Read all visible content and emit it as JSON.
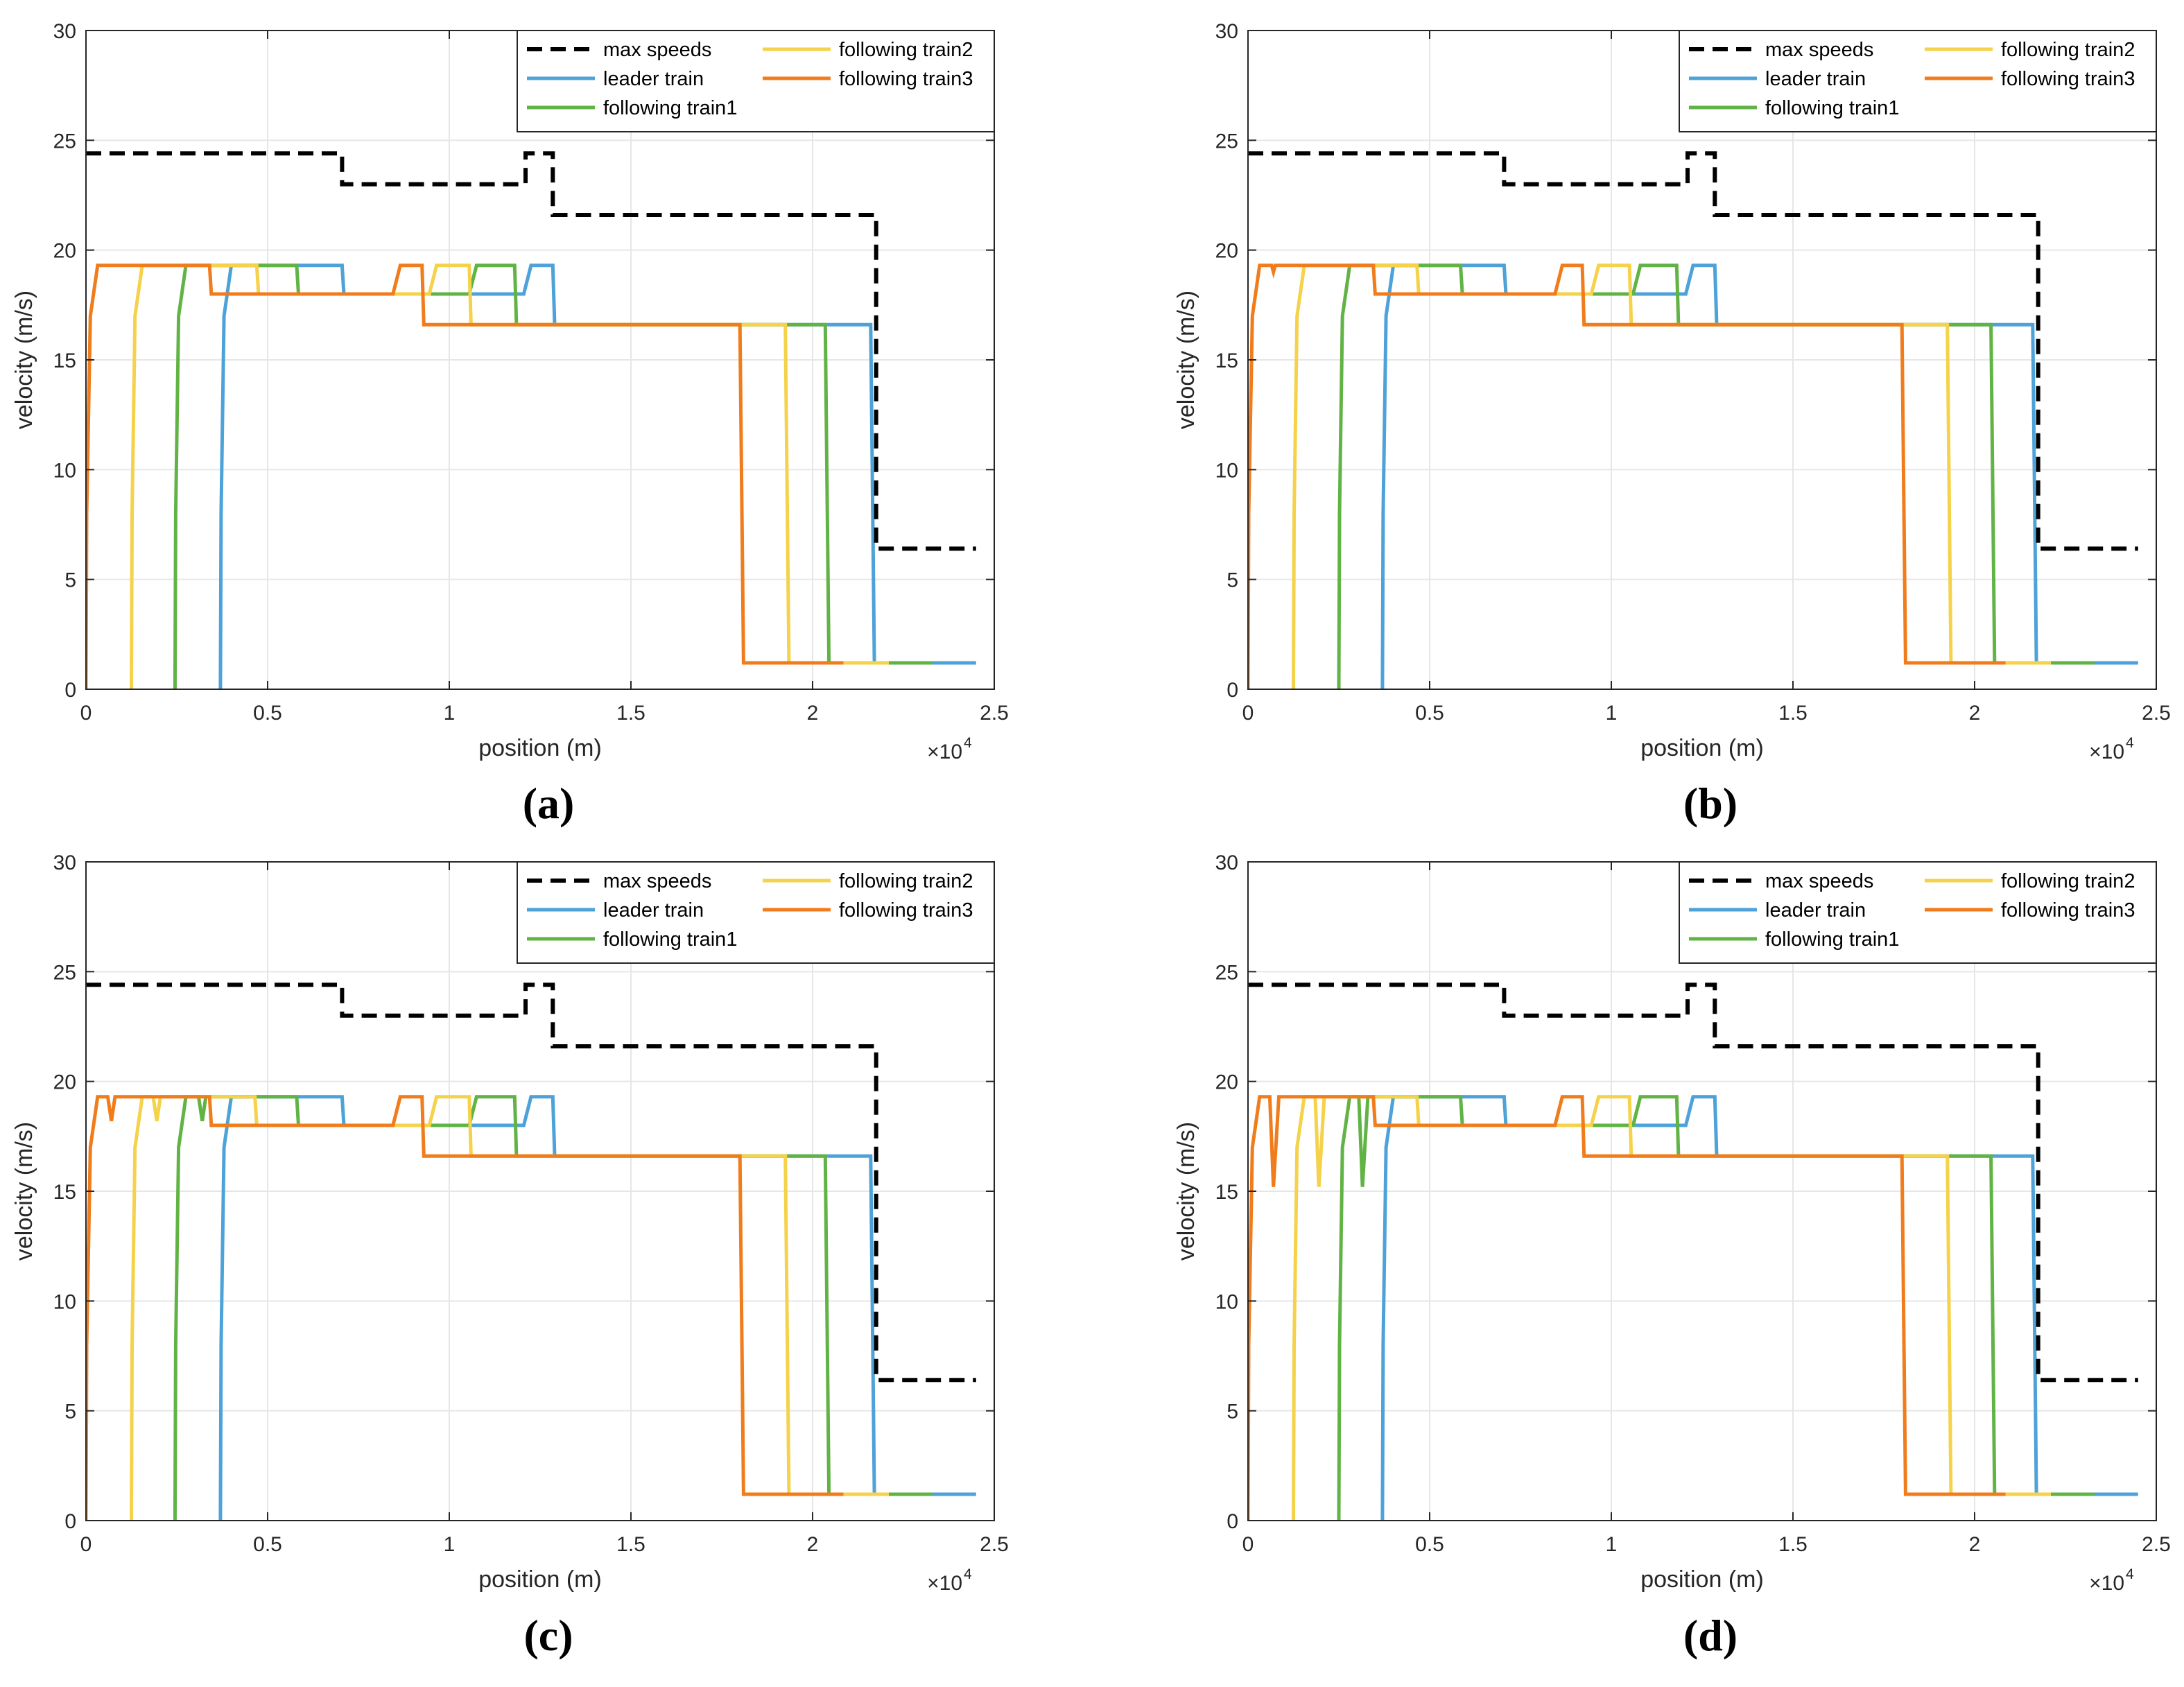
{
  "chart_data": [
    {
      "type": "line",
      "panel": "(a)",
      "xlabel": "position (m)",
      "ylabel": "velocity (m/s)",
      "xlim": [
        0,
        25000
      ],
      "ylim": [
        0,
        30
      ],
      "xticks": [
        0,
        5000,
        10000,
        15000,
        20000,
        25000
      ],
      "xtick_labels": [
        "0",
        "0.5",
        "1",
        "1.5",
        "2",
        "2.5"
      ],
      "yticks": [
        0,
        5,
        10,
        15,
        20,
        25,
        30
      ],
      "ytick_labels": [
        "0",
        "5",
        "10",
        "15",
        "20",
        "25",
        "30"
      ],
      "x_multiplier": {
        "base": "×10",
        "exp": "4"
      },
      "grid": true,
      "legend_position": "top-right",
      "series": [
        {
          "name": "max speeds",
          "color": "#000000",
          "dash": true,
          "x": [
            0,
            7050,
            7050,
            12100,
            12100,
            12850,
            12850,
            21750,
            21750,
            24500
          ],
          "y": [
            24.4,
            24.4,
            23.0,
            23.0,
            24.4,
            24.4,
            21.6,
            21.6,
            6.4,
            6.4
          ]
        },
        {
          "name": "leader train",
          "color": "#4DA2D9",
          "x": [
            3700,
            3720,
            3800,
            4000,
            7050,
            7100,
            12050,
            12250,
            12850,
            12900,
            21600,
            21700,
            24500
          ],
          "y": [
            0,
            8,
            17,
            19.3,
            19.3,
            18.0,
            18.0,
            19.3,
            19.3,
            16.6,
            16.6,
            1.2,
            1.2
          ]
        },
        {
          "name": "following train1",
          "color": "#62B346",
          "x": [
            2450,
            2470,
            2550,
            2750,
            5800,
            5850,
            10550,
            10750,
            11800,
            11850,
            20350,
            20450,
            23300
          ],
          "y": [
            0,
            8,
            17,
            19.3,
            19.3,
            18.0,
            18.0,
            19.3,
            19.3,
            16.6,
            16.6,
            1.2,
            1.2
          ]
        },
        {
          "name": "following train2",
          "color": "#F5D24A",
          "x": [
            1250,
            1270,
            1350,
            1550,
            4700,
            4750,
            9450,
            9650,
            10550,
            10600,
            19250,
            19350,
            22100
          ],
          "y": [
            0,
            8,
            17,
            19.3,
            19.3,
            18.0,
            18.0,
            19.3,
            19.3,
            16.6,
            16.6,
            1.2,
            1.2
          ]
        },
        {
          "name": "following train3",
          "color": "#F07C1C",
          "x": [
            0,
            20,
            120,
            320,
            3400,
            3450,
            8450,
            8650,
            9250,
            9300,
            18000,
            18100,
            20850
          ],
          "y": [
            0,
            8,
            17,
            19.3,
            19.3,
            18.0,
            18.0,
            19.3,
            19.3,
            16.6,
            16.6,
            1.2,
            1.2
          ]
        }
      ]
    },
    {
      "type": "line",
      "panel": "(b)",
      "xlabel": "position (m)",
      "ylabel": "velocity (m/s)",
      "xlim": [
        0,
        25000
      ],
      "ylim": [
        0,
        30
      ],
      "xticks": [
        0,
        5000,
        10000,
        15000,
        20000,
        25000
      ],
      "xtick_labels": [
        "0",
        "0.5",
        "1",
        "1.5",
        "2",
        "2.5"
      ],
      "yticks": [
        0,
        5,
        10,
        15,
        20,
        25,
        30
      ],
      "ytick_labels": [
        "0",
        "5",
        "10",
        "15",
        "20",
        "25",
        "30"
      ],
      "x_multiplier": {
        "base": "×10",
        "exp": "4"
      },
      "grid": true,
      "legend_position": "top-right",
      "series": [
        {
          "name": "max speeds",
          "color": "#000000",
          "dash": true,
          "x": [
            0,
            7050,
            7050,
            12100,
            12100,
            12850,
            12850,
            21750,
            21750,
            24500
          ],
          "y": [
            24.4,
            24.4,
            23.0,
            23.0,
            24.4,
            24.4,
            21.6,
            21.6,
            6.4,
            6.4
          ]
        },
        {
          "name": "leader train",
          "color": "#4DA2D9",
          "x": [
            3700,
            3720,
            3800,
            4000,
            7050,
            7100,
            12050,
            12250,
            12850,
            12900,
            21600,
            21700,
            24500
          ],
          "y": [
            0,
            8,
            17,
            19.3,
            19.3,
            18.0,
            18.0,
            19.3,
            19.3,
            16.6,
            16.6,
            1.2,
            1.2
          ]
        },
        {
          "name": "following train1",
          "color": "#62B346",
          "x": [
            2500,
            2520,
            2600,
            2800,
            5850,
            5900,
            10600,
            10800,
            11800,
            11850,
            20450,
            20550,
            23300
          ],
          "y": [
            0,
            8,
            17,
            19.3,
            19.3,
            18.0,
            18.0,
            19.3,
            19.3,
            16.6,
            16.6,
            1.2,
            1.2
          ]
        },
        {
          "name": "following train2",
          "color": "#F5D24A",
          "x": [
            1250,
            1270,
            1350,
            1550,
            4650,
            4700,
            9450,
            9650,
            10500,
            10550,
            19250,
            19350,
            22100
          ],
          "y": [
            0,
            8,
            17,
            19.3,
            19.3,
            18.0,
            18.0,
            19.3,
            19.3,
            16.6,
            16.6,
            1.2,
            1.2
          ]
        },
        {
          "name": "following train3",
          "color": "#F07C1C",
          "x": [
            0,
            20,
            120,
            320,
            650,
            700,
            750,
            3450,
            3500,
            8450,
            8650,
            9200,
            9250,
            18000,
            18100,
            20850
          ],
          "y": [
            0,
            8,
            17,
            19.3,
            19.3,
            19.0,
            19.3,
            19.3,
            18.0,
            18.0,
            19.3,
            19.3,
            16.6,
            16.6,
            1.2,
            1.2
          ]
        }
      ]
    },
    {
      "type": "line",
      "panel": "(c)",
      "xlabel": "position (m)",
      "ylabel": "velocity (m/s)",
      "xlim": [
        0,
        25000
      ],
      "ylim": [
        0,
        30
      ],
      "xticks": [
        0,
        5000,
        10000,
        15000,
        20000,
        25000
      ],
      "xtick_labels": [
        "0",
        "0.5",
        "1",
        "1.5",
        "2",
        "2.5"
      ],
      "yticks": [
        0,
        5,
        10,
        15,
        20,
        25,
        30
      ],
      "ytick_labels": [
        "0",
        "5",
        "10",
        "15",
        "20",
        "25",
        "30"
      ],
      "x_multiplier": {
        "base": "×10",
        "exp": "4"
      },
      "grid": true,
      "legend_position": "top-right",
      "series": [
        {
          "name": "max speeds",
          "color": "#000000",
          "dash": true,
          "x": [
            0,
            7050,
            7050,
            12100,
            12100,
            12850,
            12850,
            21750,
            21750,
            24500
          ],
          "y": [
            24.4,
            24.4,
            23.0,
            23.0,
            24.4,
            24.4,
            21.6,
            21.6,
            6.4,
            6.4
          ]
        },
        {
          "name": "leader train",
          "color": "#4DA2D9",
          "x": [
            3700,
            3720,
            3800,
            4000,
            7050,
            7100,
            12050,
            12250,
            12850,
            12900,
            21600,
            21700,
            24500
          ],
          "y": [
            0,
            8,
            17,
            19.3,
            19.3,
            18.0,
            18.0,
            19.3,
            19.3,
            16.6,
            16.6,
            1.2,
            1.2
          ]
        },
        {
          "name": "following train1",
          "color": "#62B346",
          "x": [
            2450,
            2470,
            2550,
            2750,
            3100,
            3200,
            3300,
            5800,
            5850,
            10550,
            10750,
            11800,
            11850,
            20350,
            20450,
            23300
          ],
          "y": [
            0,
            8,
            17,
            19.3,
            19.3,
            18.2,
            19.3,
            19.3,
            18.0,
            18.0,
            19.3,
            19.3,
            16.6,
            16.6,
            1.2,
            1.2
          ]
        },
        {
          "name": "following train2",
          "color": "#F5D24A",
          "x": [
            1250,
            1270,
            1350,
            1550,
            1850,
            1950,
            2050,
            4650,
            4700,
            9450,
            9650,
            10550,
            10600,
            19250,
            19350,
            22100
          ],
          "y": [
            0,
            8,
            17,
            19.3,
            19.3,
            18.2,
            19.3,
            19.3,
            18.0,
            18.0,
            19.3,
            19.3,
            16.6,
            16.6,
            1.2,
            1.2
          ]
        },
        {
          "name": "following train3",
          "color": "#F07C1C",
          "x": [
            0,
            20,
            120,
            320,
            600,
            700,
            800,
            3400,
            3450,
            8450,
            8650,
            9250,
            9300,
            18000,
            18100,
            20850
          ],
          "y": [
            0,
            8,
            17,
            19.3,
            19.3,
            18.2,
            19.3,
            19.3,
            18.0,
            18.0,
            19.3,
            19.3,
            16.6,
            16.6,
            1.2,
            1.2
          ]
        }
      ]
    },
    {
      "type": "line",
      "panel": "(d)",
      "xlabel": "position (m)",
      "ylabel": "velocity (m/s)",
      "xlim": [
        0,
        25000
      ],
      "ylim": [
        0,
        30
      ],
      "xticks": [
        0,
        5000,
        10000,
        15000,
        20000,
        25000
      ],
      "xtick_labels": [
        "0",
        "0.5",
        "1",
        "1.5",
        "2",
        "2.5"
      ],
      "yticks": [
        0,
        5,
        10,
        15,
        20,
        25,
        30
      ],
      "ytick_labels": [
        "0",
        "5",
        "10",
        "15",
        "20",
        "25",
        "30"
      ],
      "x_multiplier": {
        "base": "×10",
        "exp": "4"
      },
      "grid": true,
      "legend_position": "top-right",
      "series": [
        {
          "name": "max speeds",
          "color": "#000000",
          "dash": true,
          "x": [
            0,
            7050,
            7050,
            12100,
            12100,
            12850,
            12850,
            21750,
            21750,
            24500
          ],
          "y": [
            24.4,
            24.4,
            23.0,
            23.0,
            24.4,
            24.4,
            21.6,
            21.6,
            6.4,
            6.4
          ]
        },
        {
          "name": "leader train",
          "color": "#4DA2D9",
          "x": [
            3700,
            3720,
            3800,
            4000,
            7050,
            7100,
            12050,
            12250,
            12850,
            12900,
            21600,
            21700,
            24500
          ],
          "y": [
            0,
            8,
            17,
            19.3,
            19.3,
            18.0,
            18.0,
            19.3,
            19.3,
            16.6,
            16.6,
            1.2,
            1.2
          ]
        },
        {
          "name": "following train1",
          "color": "#62B346",
          "x": [
            2500,
            2520,
            2600,
            2800,
            3050,
            3150,
            3300,
            5850,
            5900,
            10600,
            10800,
            11800,
            11850,
            20450,
            20550,
            23300
          ],
          "y": [
            0,
            8,
            17,
            19.3,
            19.3,
            15.2,
            19.3,
            19.3,
            18.0,
            18.0,
            19.3,
            19.3,
            16.6,
            16.6,
            1.2,
            1.2
          ]
        },
        {
          "name": "following train2",
          "color": "#F5D24A",
          "x": [
            1250,
            1270,
            1350,
            1550,
            1850,
            1950,
            2100,
            4650,
            4700,
            9450,
            9650,
            10500,
            10550,
            19250,
            19350,
            22100
          ],
          "y": [
            0,
            8,
            17,
            19.3,
            19.3,
            15.2,
            19.3,
            19.3,
            18.0,
            18.0,
            19.3,
            19.3,
            16.6,
            16.6,
            1.2,
            1.2
          ]
        },
        {
          "name": "following train3",
          "color": "#F07C1C",
          "x": [
            0,
            20,
            120,
            320,
            600,
            700,
            850,
            3450,
            3500,
            8450,
            8650,
            9200,
            9250,
            18000,
            18100,
            20850
          ],
          "y": [
            0,
            8,
            17,
            19.3,
            19.3,
            15.2,
            19.3,
            19.3,
            18.0,
            18.0,
            19.3,
            19.3,
            16.6,
            16.6,
            1.2,
            1.2
          ]
        }
      ]
    }
  ]
}
